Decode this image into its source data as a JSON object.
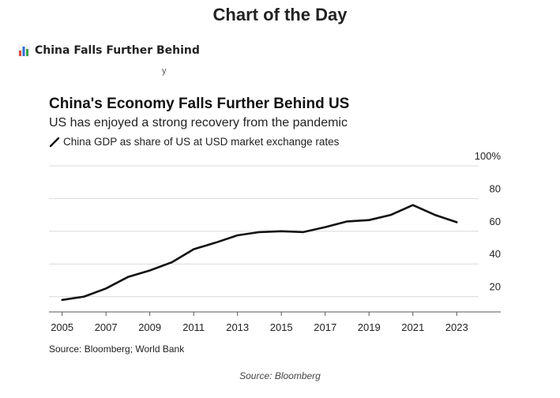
{
  "page": {
    "title": "Chart of the Day",
    "post_title": "China Falls Further Behind",
    "caption": "Source: Bloomberg"
  },
  "icons": {
    "post_icon": "bar-chart-icon",
    "legend_icon": "line-swatch-icon"
  },
  "colors": {
    "line": "#111111",
    "grid": "#d9d9d9",
    "icon_red": "#e04a3f",
    "icon_blue": "#2f6fd6",
    "icon_green": "#3aa34a"
  },
  "chart_data": {
    "type": "line",
    "title": "China's Economy Falls Further Behind US",
    "subtitle": "US has enjoyed a strong recovery from the pandemic",
    "source": "Source: Bloomberg; World Bank",
    "xlim": [
      2004.4,
      2024.0
    ],
    "ylim": [
      15,
      100
    ],
    "grid": true,
    "legend_position": "top-left",
    "x_ticks": [
      2005,
      2007,
      2009,
      2011,
      2013,
      2015,
      2017,
      2019,
      2021,
      2023
    ],
    "y_ticks": [
      20,
      40,
      60,
      80,
      100
    ],
    "y_tick_labels": [
      "20",
      "40",
      "60",
      "80",
      "100%"
    ],
    "series": [
      {
        "name": "China GDP as share of US at USD market exchange rates",
        "x": [
          2005,
          2006,
          2007,
          2008,
          2009,
          2010,
          2011,
          2012,
          2013,
          2014,
          2015,
          2016,
          2017,
          2018,
          2019,
          2020,
          2021,
          2022,
          2023
        ],
        "y": [
          18,
          20,
          25,
          32,
          36,
          41,
          49,
          53,
          57.5,
          59.5,
          60,
          59.5,
          62.5,
          66,
          66.8,
          70,
          76,
          70,
          65.5
        ]
      }
    ]
  }
}
